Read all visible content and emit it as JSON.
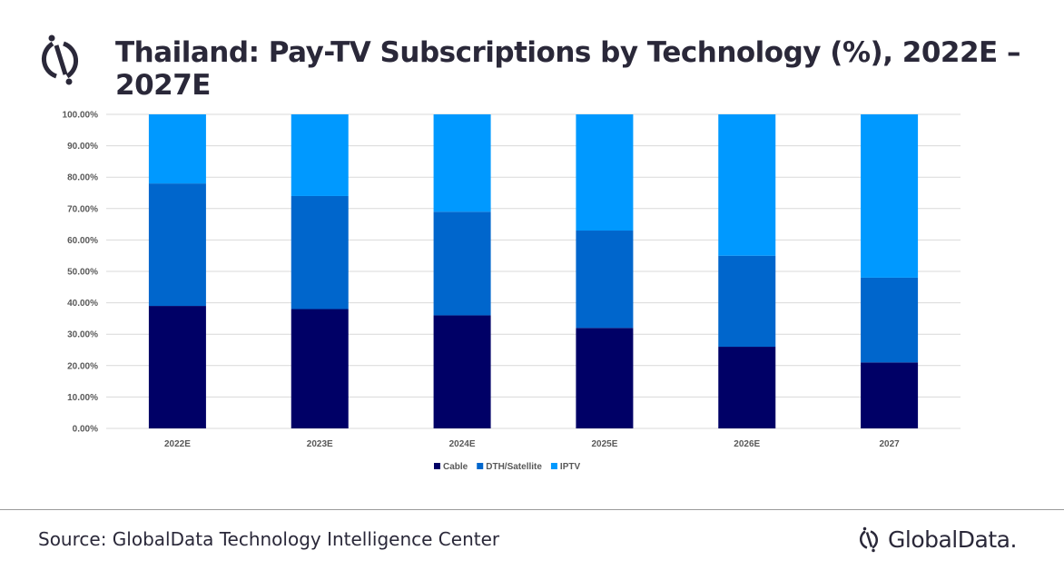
{
  "header": {
    "title": "Thailand: Pay-TV Subscriptions by Technology (%), 2022E – 2027E"
  },
  "footer": {
    "source": "Source: GlobalData Technology Intelligence Center",
    "brand": "GlobalData."
  },
  "chart_data": {
    "type": "bar",
    "stacked": true,
    "title": "Thailand: Pay-TV Subscriptions by Technology (%), 2022E – 2027E",
    "categories": [
      "2022E",
      "2023E",
      "2024E",
      "2025E",
      "2026E",
      "2027"
    ],
    "series": [
      {
        "name": "Cable",
        "color": "#000066",
        "values": [
          39,
          38,
          36,
          32,
          26,
          21
        ]
      },
      {
        "name": "DTH/Satellite",
        "color": "#0066cc",
        "values": [
          39,
          36,
          33,
          31,
          29,
          27
        ]
      },
      {
        "name": "IPTV",
        "color": "#0099ff",
        "values": [
          22,
          26,
          31,
          37,
          45,
          52
        ]
      }
    ],
    "yticks": [
      "0.00%",
      "10.00%",
      "20.00%",
      "30.00%",
      "40.00%",
      "50.00%",
      "60.00%",
      "70.00%",
      "80.00%",
      "90.00%",
      "100.00%"
    ],
    "ylim": [
      0,
      100
    ],
    "xlabel": "",
    "ylabel": "",
    "grid": true,
    "legend": "bottom"
  }
}
